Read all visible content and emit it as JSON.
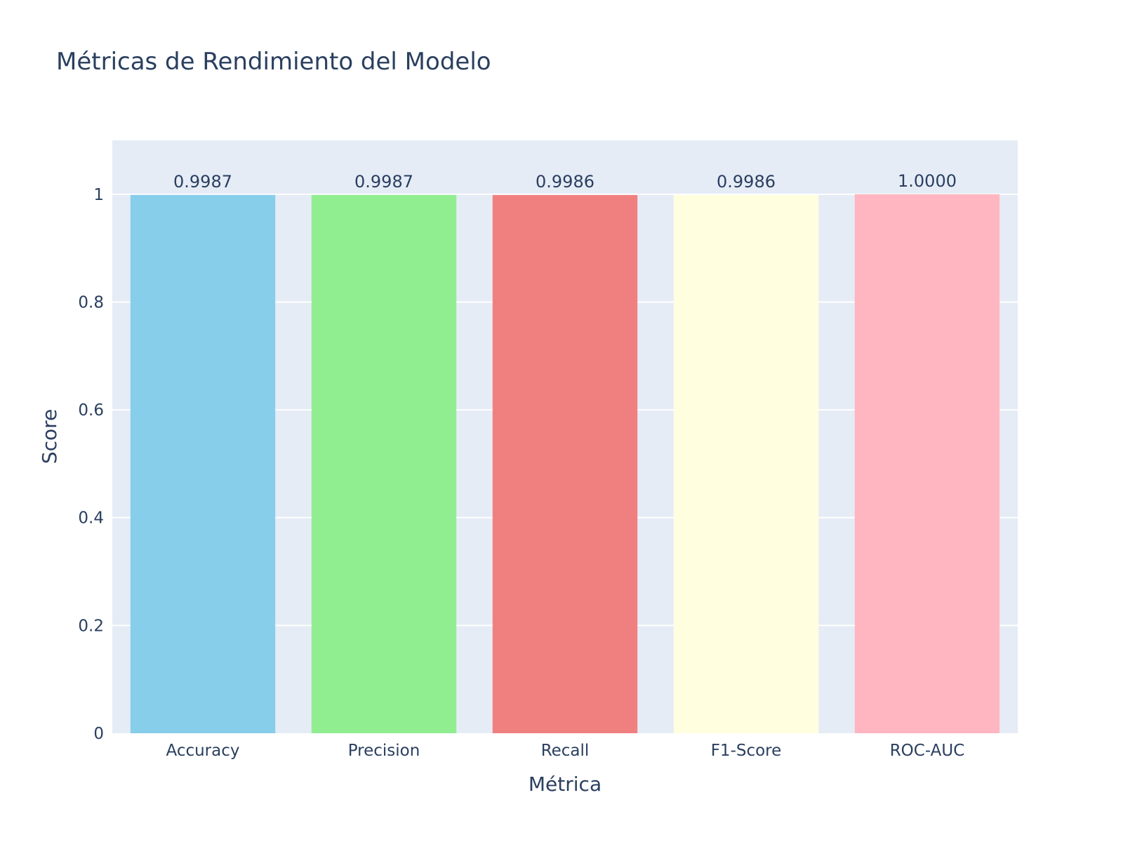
{
  "chart_data": {
    "type": "bar",
    "title": "Métricas de Rendimiento del Modelo",
    "xlabel": "Métrica",
    "ylabel": "Score",
    "categories": [
      "Accuracy",
      "Precision",
      "Recall",
      "F1-Score",
      "ROC-AUC"
    ],
    "values": [
      0.9987,
      0.9987,
      0.9986,
      0.9986,
      1.0
    ],
    "data_labels": [
      "0.9987",
      "0.9987",
      "0.9986",
      "0.9986",
      "1.0000"
    ],
    "bar_colors": [
      "#87ceeb",
      "#90ee90",
      "#f08080",
      "#ffffe0",
      "#ffb6c1"
    ],
    "ylim": [
      0,
      1.1
    ],
    "y_ticks": [
      0,
      0.2,
      0.4,
      0.6,
      0.8,
      1
    ],
    "y_tick_labels": [
      "0",
      "0.2",
      "0.4",
      "0.6",
      "0.8",
      "1"
    ],
    "grid": true,
    "plot_background": "#e5ecf6",
    "text_color": "#2a3f5f"
  }
}
